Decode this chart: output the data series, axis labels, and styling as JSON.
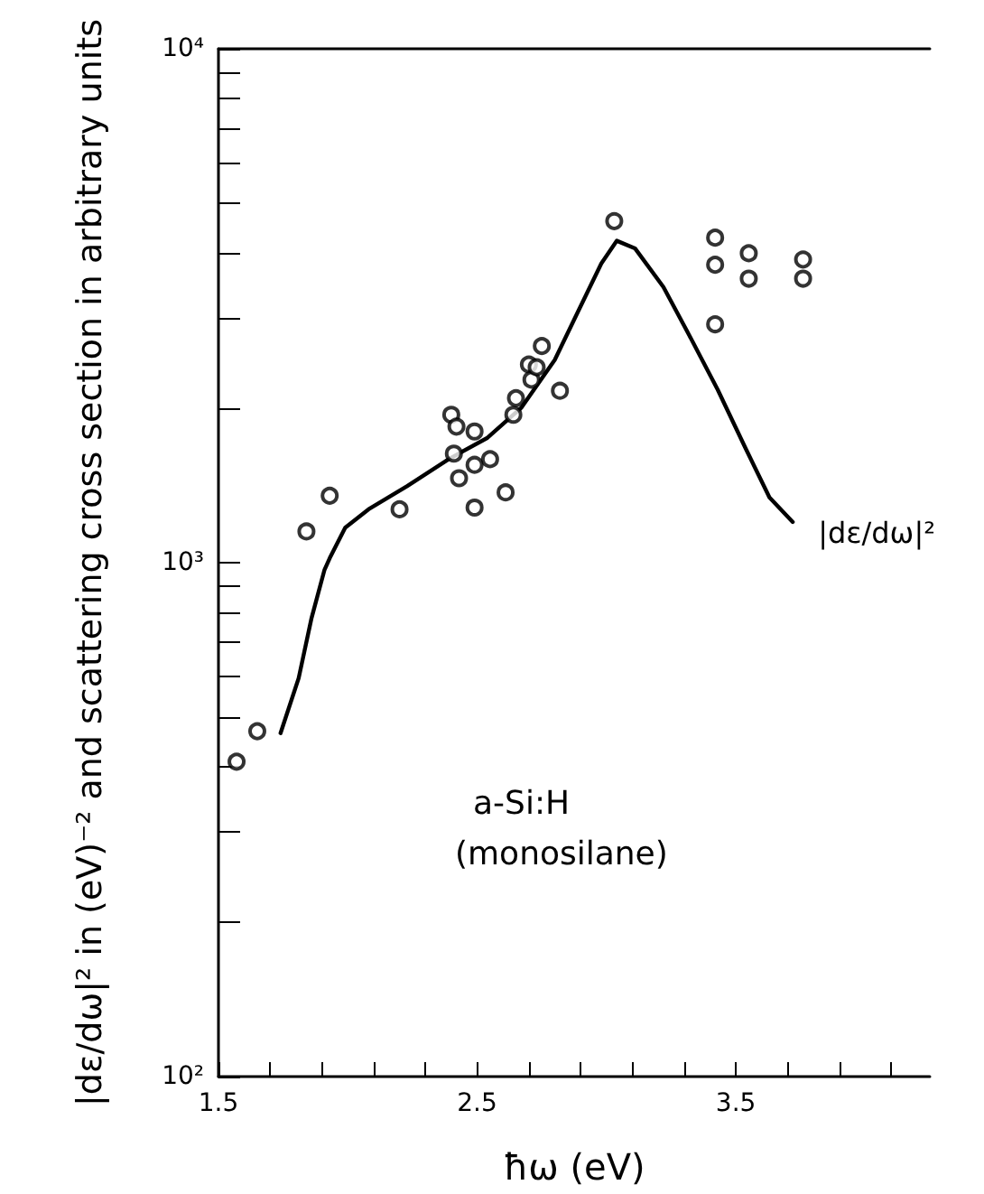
{
  "chart_data": {
    "type": "scatter",
    "xlabel": "ħω (eV)",
    "ylabel": "|dε/dω|² in (eV)⁻² and scattering cross section in arbitrary units",
    "annotations": [
      "a-Si:H",
      "(monosilane)"
    ],
    "log": "y",
    "grid": false,
    "legend": false,
    "marker": "circle",
    "xlim": [
      1.5,
      4.25
    ],
    "xticks": [
      1.5,
      {
        "value": 1.7,
        "label": null
      },
      {
        "value": 1.9,
        "label": null
      },
      {
        "value": 2.1,
        "label": null
      },
      {
        "value": 2.3,
        "label": null
      },
      2.5,
      {
        "value": 2.7,
        "label": null
      },
      {
        "value": 2.9,
        "label": null
      },
      {
        "value": 3.1,
        "label": null
      },
      {
        "value": 3.3,
        "label": null
      },
      3.5,
      {
        "value": 3.7,
        "label": null
      },
      {
        "value": 3.9,
        "label": null
      },
      {
        "value": 4.1,
        "label": null
      }
    ],
    "ylim": [
      100,
      10000
    ],
    "yticks": [
      {
        "value": 100,
        "label": "10²"
      },
      {
        "value": 200,
        "label": null
      },
      {
        "value": 300,
        "label": null
      },
      {
        "value": 400,
        "label": null
      },
      {
        "value": 500,
        "label": null
      },
      {
        "value": 600,
        "label": null
      },
      {
        "value": 700,
        "label": null
      },
      {
        "value": 800,
        "label": null
      },
      {
        "value": 900,
        "label": null
      },
      {
        "value": 1000,
        "label": "10³"
      },
      {
        "value": 2000,
        "label": null
      },
      {
        "value": 3000,
        "label": null
      },
      {
        "value": 4000,
        "label": null
      },
      {
        "value": 5000,
        "label": null
      },
      {
        "value": 6000,
        "label": null
      },
      {
        "value": 7000,
        "label": null
      },
      {
        "value": 8000,
        "label": null
      },
      {
        "value": 9000,
        "label": null
      },
      {
        "value": 10000,
        "label": "10⁴"
      }
    ],
    "series": [
      {
        "type": "scatter",
        "color": "#000000",
        "x": [
          1.57,
          1.65,
          1.84,
          1.93,
          2.2,
          2.4,
          2.42,
          2.49,
          2.41,
          2.49,
          2.43,
          2.55,
          2.49,
          2.61,
          2.64,
          2.65,
          2.7,
          2.71,
          2.73,
          2.75,
          2.82,
          3.03,
          3.42,
          3.42,
          3.42,
          3.55,
          3.55,
          3.76,
          3.76
        ],
        "values": [
          410,
          470,
          1150,
          1350,
          1270,
          1940,
          1840,
          1800,
          1630,
          1550,
          1460,
          1590,
          1280,
          1370,
          1940,
          2090,
          2430,
          2270,
          2400,
          2640,
          2160,
          4620,
          4290,
          3800,
          2910,
          4000,
          3570,
          3890,
          3570
        ]
      },
      {
        "type": "line",
        "name": "|dε/dω|²",
        "color": "#000000",
        "marker": "none",
        "line_style": "solid",
        "x": [
          1.74,
          1.81,
          1.86,
          1.91,
          1.93,
          1.99,
          2.08,
          2.23,
          2.39,
          2.54,
          2.67,
          2.8,
          2.89,
          2.98,
          3.04,
          3.11,
          3.22,
          3.32,
          3.43,
          3.54,
          3.63,
          3.72
        ],
        "values": [
          466,
          596,
          781,
          969,
          1020,
          1170,
          1270,
          1410,
          1590,
          1750,
          2000,
          2480,
          3080,
          3820,
          4230,
          4090,
          3440,
          2770,
          2170,
          1660,
          1340,
          1200
        ]
      }
    ]
  }
}
